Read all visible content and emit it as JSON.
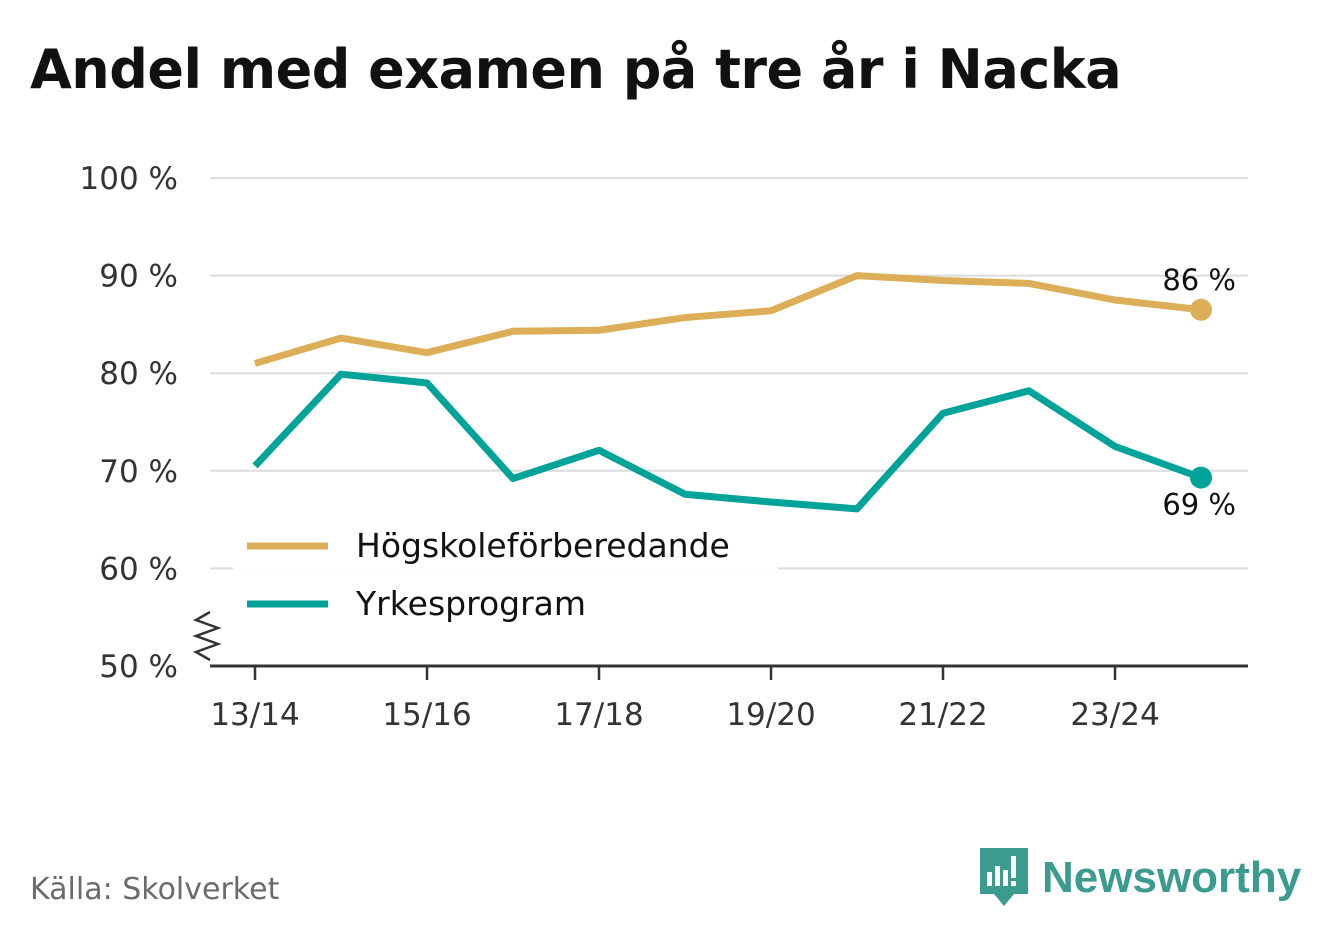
{
  "title": "Andel med examen på tre år i Nacka",
  "source": "Källa: Skolverket",
  "brand": {
    "name": "Newsworthy",
    "icon": "newsworthy-logo-icon"
  },
  "colors": {
    "hogskole": "#dcae58",
    "yrkes": "#00a39a",
    "axis": "#333333",
    "grid": "#dcdcdc"
  },
  "chart_data": {
    "type": "line",
    "title": "Andel med examen på tre år i Nacka",
    "xlabel": "",
    "ylabel": "",
    "ylim": [
      50,
      100
    ],
    "y_ticks": [
      "100 %",
      "90 %",
      "80 %",
      "70 %",
      "60 %",
      "50 %"
    ],
    "x": [
      "13/14",
      "14/15",
      "15/16",
      "16/17",
      "17/18",
      "18/19",
      "19/20",
      "20/21",
      "21/22",
      "22/23",
      "23/24",
      "24/25"
    ],
    "x_tick_labels": [
      "13/14",
      "15/16",
      "17/18",
      "19/20",
      "21/22",
      "23/24"
    ],
    "grid": true,
    "legend": "bottom-left",
    "series": [
      {
        "name": "Högskoleförberedande",
        "color": "#dcae58",
        "values": [
          81.0,
          83.6,
          82.1,
          84.3,
          84.4,
          85.7,
          86.4,
          90.0,
          89.5,
          89.2,
          87.5,
          86.5
        ],
        "end_label": "86 %"
      },
      {
        "name": "Yrkesprogram",
        "color": "#00a39a",
        "values": [
          70.5,
          79.9,
          79.0,
          69.2,
          72.1,
          67.6,
          66.8,
          66.1,
          75.9,
          78.2,
          72.5,
          69.3
        ],
        "end_label": "69 %"
      }
    ]
  }
}
